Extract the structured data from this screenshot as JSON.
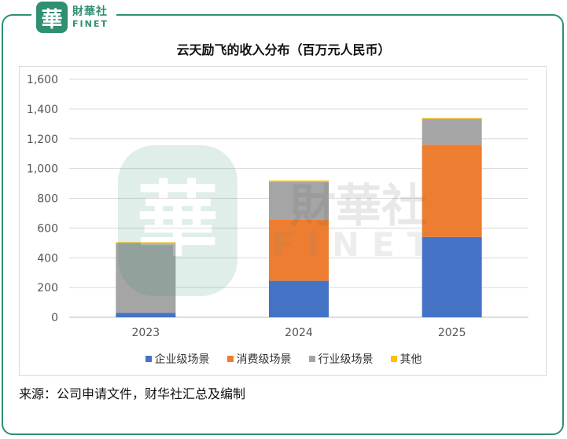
{
  "brand": {
    "mark": "華",
    "name_cn": "財華社",
    "name_en": "FINET"
  },
  "colors": {
    "brand": "#2f8f72"
  },
  "chart_data": {
    "type": "bar",
    "stacked": true,
    "title": "云天励飞的收入分布（百万元人民币）",
    "categories": [
      "2023",
      "2024",
      "2025"
    ],
    "series": [
      {
        "name": "企业级场景",
        "color": "#4472c4",
        "values": [
          30,
          245,
          540
        ]
      },
      {
        "name": "消费级场景",
        "color": "#ed7d31",
        "values": [
          0,
          410,
          620
        ]
      },
      {
        "name": "行业级场景",
        "color": "#a5a5a5",
        "values": [
          470,
          255,
          175
        ]
      },
      {
        "name": "其他",
        "color": "#ffc000",
        "values": [
          5,
          10,
          5
        ]
      }
    ],
    "ylim": [
      0,
      1600
    ],
    "yticks": [
      "0",
      "200",
      "400",
      "600",
      "800",
      "1,000",
      "1,200",
      "1,400",
      "1,600"
    ],
    "grid": true,
    "legend_position": "bottom"
  },
  "footer": {
    "source": "来源：公司申请文件，财华社汇总及编制"
  }
}
